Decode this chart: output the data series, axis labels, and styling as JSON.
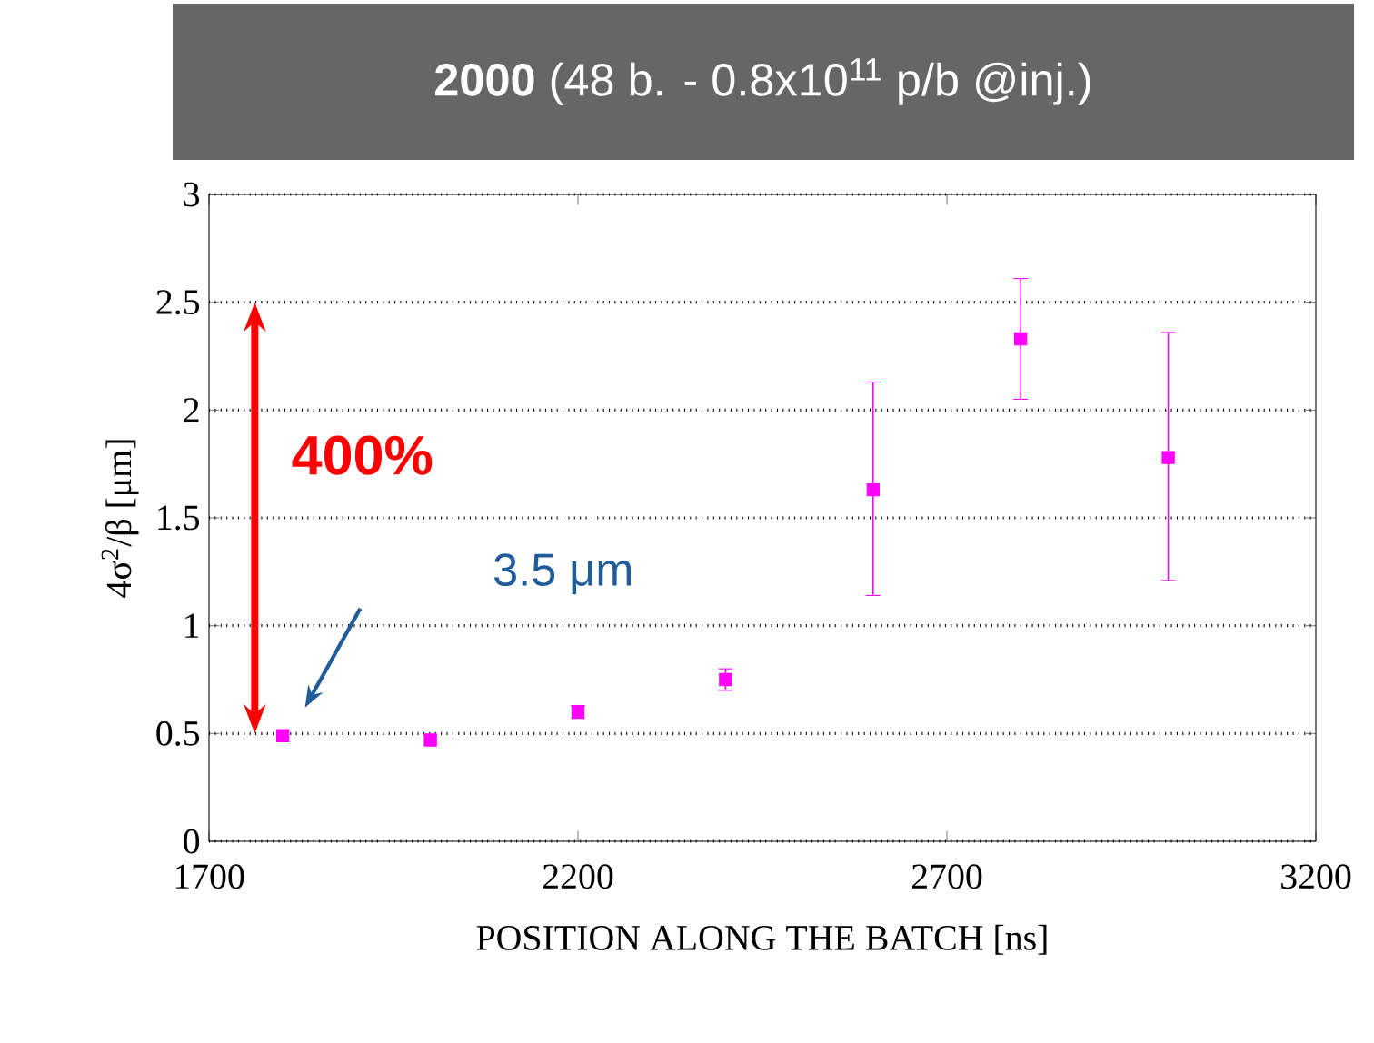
{
  "chart_data": {
    "type": "scatter",
    "title": "**2000** (48 b. - 0.8x10$^{11}$ p/b @inj.)",
    "xlabel": "POSITION ALONG THE BATCH [ns]",
    "ylabel": "4σ$^{2}$/β [μm]",
    "x": [
      1800,
      2000,
      2200,
      2400,
      2600,
      2800,
      3000
    ],
    "values": [
      0.49,
      0.47,
      0.6,
      0.75,
      1.63,
      2.33,
      1.78
    ],
    "errors": [
      null,
      null,
      0.03,
      0.05,
      [
        1.14,
        2.13
      ],
      [
        2.05,
        2.61
      ],
      [
        1.21,
        2.36
      ]
    ],
    "color": "#ff00ff",
    "marker": "square",
    "xlim": [
      1700,
      3200
    ],
    "xticks": [
      1700,
      2200,
      2700,
      3200
    ],
    "ylim": [
      0,
      3
    ],
    "yticks": [
      0,
      0.5,
      1,
      1.5,
      2,
      2.5,
      3
    ],
    "grid": "y",
    "annotations": [
      "400%",
      "3.5 μm"
    ]
  }
}
